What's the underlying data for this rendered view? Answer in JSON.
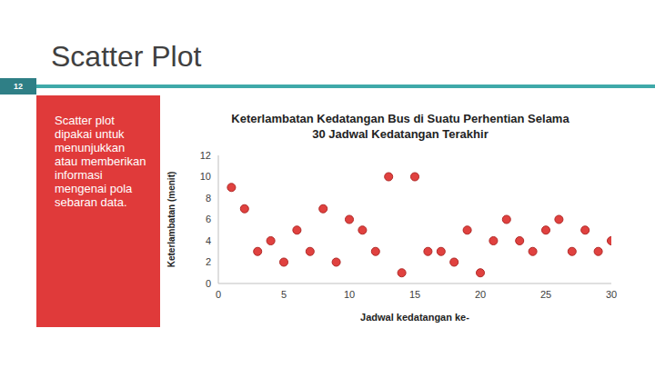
{
  "slide": {
    "heading": "Scatter Plot",
    "page_number": "12",
    "panel_text": "Scatter plot dipakai untuk menunjukkan atau memberikan informasi mengenai pola sebaran data."
  },
  "chart_data": {
    "type": "scatter",
    "title": "Keterlambatan Kedatangan Bus di Suatu Perhentian Selama 30 Jadwal Kedatangan Terakhir",
    "x_label": "Jadwal kedatangan ke-",
    "y_label": "Keterlambatan (menit)",
    "x": [
      1,
      2,
      3,
      4,
      5,
      6,
      7,
      8,
      9,
      10,
      11,
      12,
      13,
      14,
      15,
      16,
      17,
      18,
      19,
      20,
      21,
      22,
      23,
      24,
      25,
      26,
      27,
      28,
      29,
      30
    ],
    "values": [
      9,
      7,
      3,
      4,
      2,
      5,
      3,
      7,
      2,
      6,
      5,
      3,
      10,
      1,
      10,
      3,
      3,
      2,
      5,
      1,
      4,
      6,
      4,
      3,
      5,
      6,
      3,
      5,
      3,
      4
    ],
    "color": "#e0413f",
    "marker": "circle",
    "xlim": [
      0,
      30
    ],
    "xticks": [
      0,
      5,
      10,
      15,
      20,
      25,
      30
    ],
    "ylim": [
      0,
      12
    ],
    "yticks": [
      0,
      2,
      4,
      6,
      8,
      10,
      12
    ],
    "grid": false
  }
}
